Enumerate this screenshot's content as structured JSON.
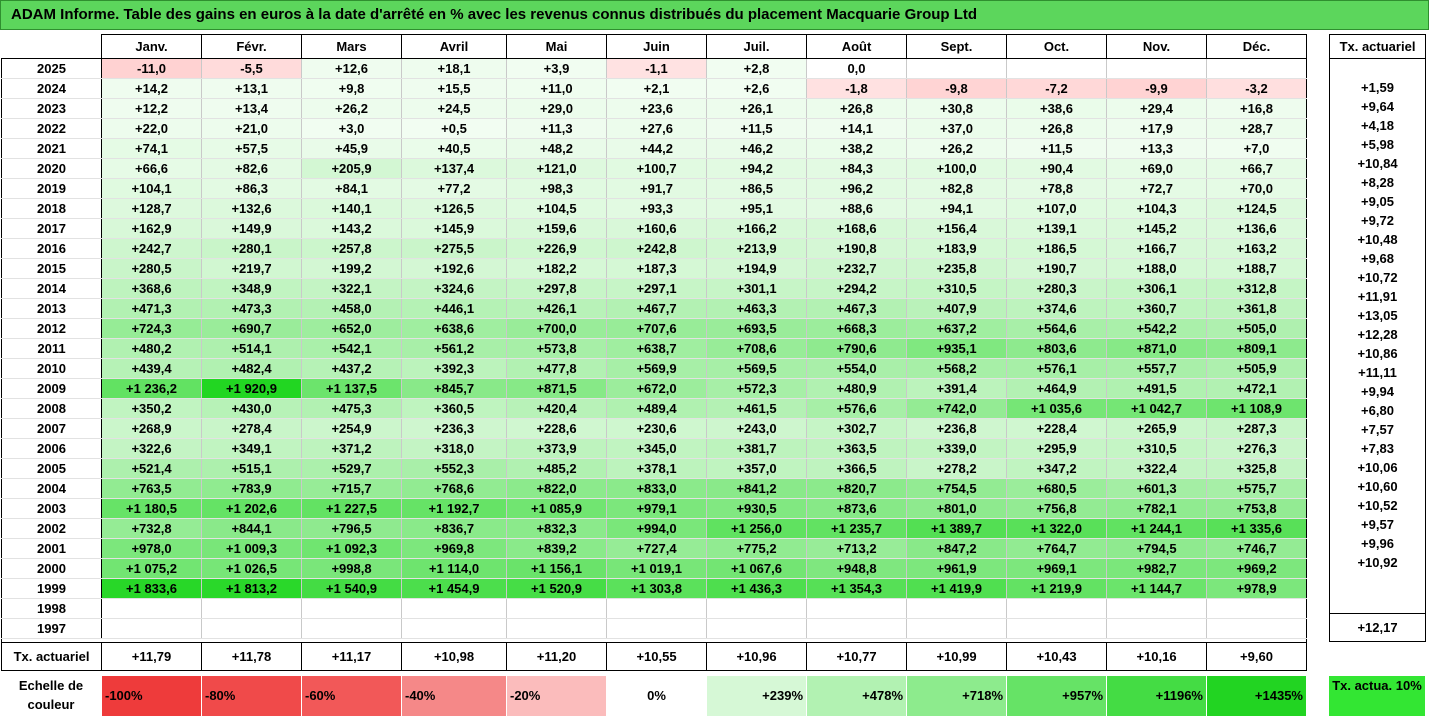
{
  "title": "ADAM Informe. Table des gains en euros à la date d'arrêté en % avec les revenus connus distribués du placement Macquarie Group Ltd",
  "months": [
    "Janv.",
    "Févr.",
    "Mars",
    "Avril",
    "Mai",
    "Juin",
    "Juil.",
    "Août",
    "Sept.",
    "Oct.",
    "Nov.",
    "Déc."
  ],
  "side_header": "Tx. actuariel",
  "rows": [
    {
      "year": "2025",
      "vals": [
        "-11,0",
        "-5,5",
        "+12,6",
        "+18,1",
        "+3,9",
        "-1,1",
        "+2,8",
        "0,0",
        "",
        "",
        "",
        ""
      ],
      "rate": ""
    },
    {
      "year": "2024",
      "vals": [
        "+14,2",
        "+13,1",
        "+9,8",
        "+15,5",
        "+11,0",
        "+2,1",
        "+2,6",
        "-1,8",
        "-9,8",
        "-7,2",
        "-9,9",
        "-3,2"
      ],
      "rate": "+1,59"
    },
    {
      "year": "2023",
      "vals": [
        "+12,2",
        "+13,4",
        "+26,2",
        "+24,5",
        "+29,0",
        "+23,6",
        "+26,1",
        "+26,8",
        "+30,8",
        "+38,6",
        "+29,4",
        "+16,8"
      ],
      "rate": "+9,64"
    },
    {
      "year": "2022",
      "vals": [
        "+22,0",
        "+21,0",
        "+3,0",
        "+0,5",
        "+11,3",
        "+27,6",
        "+11,5",
        "+14,1",
        "+37,0",
        "+26,8",
        "+17,9",
        "+28,7"
      ],
      "rate": "+4,18"
    },
    {
      "year": "2021",
      "vals": [
        "+74,1",
        "+57,5",
        "+45,9",
        "+40,5",
        "+48,2",
        "+44,2",
        "+46,2",
        "+38,2",
        "+26,2",
        "+11,5",
        "+13,3",
        "+7,0"
      ],
      "rate": "+5,98"
    },
    {
      "year": "2020",
      "vals": [
        "+66,6",
        "+82,6",
        "+205,9",
        "+137,4",
        "+121,0",
        "+100,7",
        "+94,2",
        "+84,3",
        "+100,0",
        "+90,4",
        "+69,0",
        "+66,7"
      ],
      "rate": "+10,84"
    },
    {
      "year": "2019",
      "vals": [
        "+104,1",
        "+86,3",
        "+84,1",
        "+77,2",
        "+98,3",
        "+91,7",
        "+86,5",
        "+96,2",
        "+82,8",
        "+78,8",
        "+72,7",
        "+70,0"
      ],
      "rate": "+8,28"
    },
    {
      "year": "2018",
      "vals": [
        "+128,7",
        "+132,6",
        "+140,1",
        "+126,5",
        "+104,5",
        "+93,3",
        "+95,1",
        "+88,6",
        "+94,1",
        "+107,0",
        "+104,3",
        "+124,5"
      ],
      "rate": "+9,05"
    },
    {
      "year": "2017",
      "vals": [
        "+162,9",
        "+149,9",
        "+143,2",
        "+145,9",
        "+159,6",
        "+160,6",
        "+166,2",
        "+168,6",
        "+156,4",
        "+139,1",
        "+145,2",
        "+136,6"
      ],
      "rate": "+9,72"
    },
    {
      "year": "2016",
      "vals": [
        "+242,7",
        "+280,1",
        "+257,8",
        "+275,5",
        "+226,9",
        "+242,8",
        "+213,9",
        "+190,8",
        "+183,9",
        "+186,5",
        "+166,7",
        "+163,2"
      ],
      "rate": "+10,48"
    },
    {
      "year": "2015",
      "vals": [
        "+280,5",
        "+219,7",
        "+199,2",
        "+192,6",
        "+182,2",
        "+187,3",
        "+194,9",
        "+232,7",
        "+235,8",
        "+190,7",
        "+188,0",
        "+188,7"
      ],
      "rate": "+9,68"
    },
    {
      "year": "2014",
      "vals": [
        "+368,6",
        "+348,9",
        "+322,1",
        "+324,6",
        "+297,8",
        "+297,1",
        "+301,1",
        "+294,2",
        "+310,5",
        "+280,3",
        "+306,1",
        "+312,8"
      ],
      "rate": "+10,72"
    },
    {
      "year": "2013",
      "vals": [
        "+471,3",
        "+473,3",
        "+458,0",
        "+446,1",
        "+426,1",
        "+467,7",
        "+463,3",
        "+467,3",
        "+407,9",
        "+374,6",
        "+360,7",
        "+361,8"
      ],
      "rate": "+11,91"
    },
    {
      "year": "2012",
      "vals": [
        "+724,3",
        "+690,7",
        "+652,0",
        "+638,6",
        "+700,0",
        "+707,6",
        "+693,5",
        "+668,3",
        "+637,2",
        "+564,6",
        "+542,2",
        "+505,0"
      ],
      "rate": "+13,05"
    },
    {
      "year": "2011",
      "vals": [
        "+480,2",
        "+514,1",
        "+542,1",
        "+561,2",
        "+573,8",
        "+638,7",
        "+708,6",
        "+790,6",
        "+935,1",
        "+803,6",
        "+871,0",
        "+809,1"
      ],
      "rate": "+12,28"
    },
    {
      "year": "2010",
      "vals": [
        "+439,4",
        "+482,4",
        "+437,2",
        "+392,3",
        "+477,8",
        "+569,9",
        "+569,5",
        "+554,0",
        "+568,2",
        "+576,1",
        "+557,7",
        "+505,9"
      ],
      "rate": "+10,86"
    },
    {
      "year": "2009",
      "vals": [
        "+1 236,2",
        "+1 920,9",
        "+1 137,5",
        "+845,7",
        "+871,5",
        "+672,0",
        "+572,3",
        "+480,9",
        "+391,4",
        "+464,9",
        "+491,5",
        "+472,1"
      ],
      "rate": "+11,11"
    },
    {
      "year": "2008",
      "vals": [
        "+350,2",
        "+430,0",
        "+475,3",
        "+360,5",
        "+420,4",
        "+489,4",
        "+461,5",
        "+576,6",
        "+742,0",
        "+1 035,6",
        "+1 042,7",
        "+1 108,9"
      ],
      "rate": "+9,94"
    },
    {
      "year": "2007",
      "vals": [
        "+268,9",
        "+278,4",
        "+254,9",
        "+236,3",
        "+228,6",
        "+230,6",
        "+243,0",
        "+302,7",
        "+236,8",
        "+228,4",
        "+265,9",
        "+287,3"
      ],
      "rate": "+6,80"
    },
    {
      "year": "2006",
      "vals": [
        "+322,6",
        "+349,1",
        "+371,2",
        "+318,0",
        "+373,9",
        "+345,0",
        "+381,7",
        "+363,5",
        "+339,0",
        "+295,9",
        "+310,5",
        "+276,3"
      ],
      "rate": "+7,57"
    },
    {
      "year": "2005",
      "vals": [
        "+521,4",
        "+515,1",
        "+529,7",
        "+552,3",
        "+485,2",
        "+378,1",
        "+357,0",
        "+366,5",
        "+278,2",
        "+347,2",
        "+322,4",
        "+325,8"
      ],
      "rate": "+7,83"
    },
    {
      "year": "2004",
      "vals": [
        "+763,5",
        "+783,9",
        "+715,7",
        "+768,6",
        "+822,0",
        "+833,0",
        "+841,2",
        "+820,7",
        "+754,5",
        "+680,5",
        "+601,3",
        "+575,7"
      ],
      "rate": "+10,06"
    },
    {
      "year": "2003",
      "vals": [
        "+1 180,5",
        "+1 202,6",
        "+1 227,5",
        "+1 192,7",
        "+1 085,9",
        "+979,1",
        "+930,5",
        "+873,6",
        "+801,0",
        "+756,8",
        "+782,1",
        "+753,8"
      ],
      "rate": "+10,60"
    },
    {
      "year": "2002",
      "vals": [
        "+732,8",
        "+844,1",
        "+796,5",
        "+836,7",
        "+832,3",
        "+994,0",
        "+1 256,0",
        "+1 235,7",
        "+1 389,7",
        "+1 322,0",
        "+1 244,1",
        "+1 335,6"
      ],
      "rate": "+10,52"
    },
    {
      "year": "2001",
      "vals": [
        "+978,0",
        "+1 009,3",
        "+1 092,3",
        "+969,8",
        "+839,2",
        "+727,4",
        "+775,2",
        "+713,2",
        "+847,2",
        "+764,7",
        "+794,5",
        "+746,7"
      ],
      "rate": "+9,57"
    },
    {
      "year": "2000",
      "vals": [
        "+1 075,2",
        "+1 026,5",
        "+998,8",
        "+1 114,0",
        "+1 156,1",
        "+1 019,1",
        "+1 067,6",
        "+948,8",
        "+961,9",
        "+969,1",
        "+982,7",
        "+969,2"
      ],
      "rate": "+9,96"
    },
    {
      "year": "1999",
      "vals": [
        "+1 833,6",
        "+1 813,2",
        "+1 540,9",
        "+1 454,9",
        "+1 520,9",
        "+1 303,8",
        "+1 436,3",
        "+1 354,3",
        "+1 419,9",
        "+1 219,9",
        "+1 144,7",
        "+978,9"
      ],
      "rate": "+10,92"
    },
    {
      "year": "1998",
      "vals": [
        "",
        "",
        "",
        "",
        "",
        "",
        "",
        "",
        "",
        "",
        "",
        ""
      ],
      "rate": ""
    },
    {
      "year": "1997",
      "vals": [
        "",
        "",
        "",
        "",
        "",
        "",
        "",
        "",
        "",
        "",
        "",
        ""
      ],
      "rate": ""
    }
  ],
  "footer": {
    "label": "Tx. actuariel",
    "vals": [
      "+11,79",
      "+11,78",
      "+11,17",
      "+10,98",
      "+11,20",
      "+10,55",
      "+10,96",
      "+10,77",
      "+10,99",
      "+10,43",
      "+10,16",
      "+9,60"
    ],
    "total": "+12,17"
  },
  "legend": {
    "label": "Echelle de couleur",
    "steps": [
      {
        "label": "-100%",
        "color": "#ee3b3b"
      },
      {
        "label": "-80%",
        "color": "#f04a4a"
      },
      {
        "label": "-60%",
        "color": "#f25858"
      },
      {
        "label": "-40%",
        "color": "#f58888"
      },
      {
        "label": "-20%",
        "color": "#fbbcbc"
      },
      {
        "label": "0%",
        "color": "#ffffff"
      },
      {
        "label": "+239%",
        "color": "#d6f8d6"
      },
      {
        "label": "+478%",
        "color": "#b2f2b2"
      },
      {
        "label": "+718%",
        "color": "#8deb8d"
      },
      {
        "label": "+957%",
        "color": "#66e366"
      },
      {
        "label": "+1196%",
        "color": "#44dc44"
      },
      {
        "label": "+1435%",
        "color": "#22d422"
      }
    ],
    "actuarial_label": "Tx. actua. 10%",
    "actuarial_color": "#33e633"
  }
}
